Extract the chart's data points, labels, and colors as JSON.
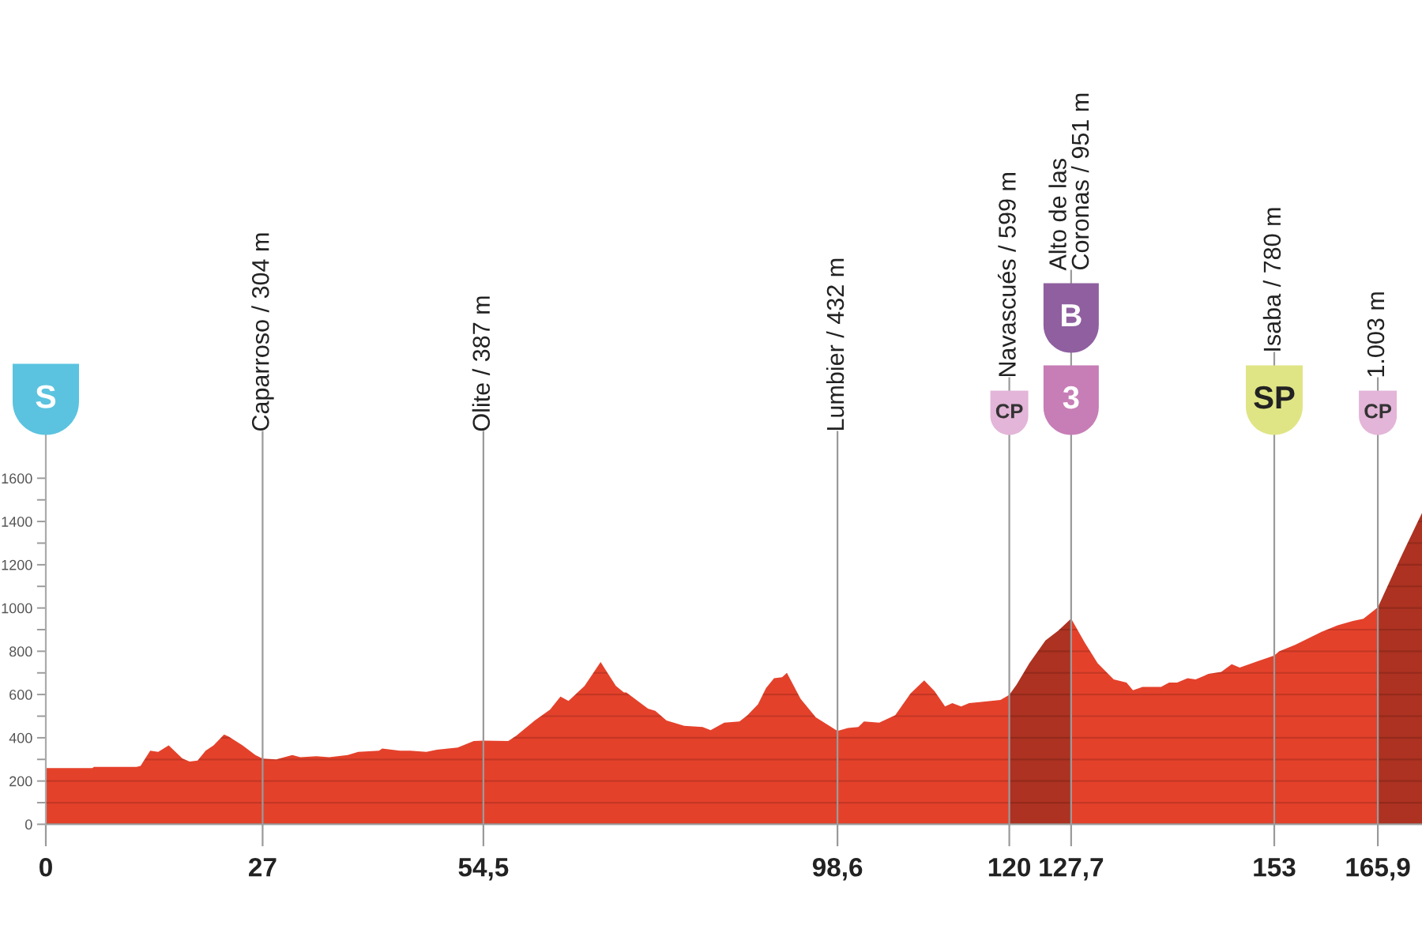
{
  "chart_data": {
    "type": "area",
    "xlim": [
      0,
      171.4
    ],
    "ylim": [
      0,
      1800
    ],
    "xticks": [
      0,
      27,
      {
        "value": 54.5,
        "label": "54,5"
      },
      {
        "value": 98.6,
        "label": "98,6"
      },
      120,
      {
        "value": 127.7,
        "label": "127,7"
      },
      153,
      {
        "value": 165.9,
        "label": "165,9"
      }
    ],
    "yticks": [
      0,
      {
        "value": 100,
        "label": null
      },
      200,
      {
        "value": 300,
        "label": null
      },
      400,
      {
        "value": 500,
        "label": null
      },
      600,
      {
        "value": 700,
        "label": null
      },
      800,
      {
        "value": 900,
        "label": null
      },
      1000,
      {
        "value": 1100,
        "label": null
      },
      1200,
      {
        "value": 1300,
        "label": null
      },
      1400,
      {
        "value": 1500,
        "label": null
      },
      1600
    ],
    "grid": "y",
    "series": [
      {
        "color": "#e4412b",
        "x": [
          0,
          5.8,
          6.0,
          11.3,
          11.8,
          13.0,
          14.0,
          15.3,
          17.0,
          17.9,
          18.9,
          19.9,
          20.9,
          22.2,
          22.8,
          24.5,
          26.1,
          27,
          28.7,
          30.7,
          31.7,
          33.7,
          35.3,
          37.6,
          38.9,
          41.5,
          41.9,
          44.1,
          45.4,
          47.4,
          48.7,
          51.3,
          53.3,
          54.5,
          57.6,
          58.6,
          60.9,
          62.8,
          64.1,
          65.1,
          67.1,
          69.1,
          71.0,
          72.0,
          72.3,
          75.0,
          75.9,
          77.3,
          79.5,
          81.8,
          82.8,
          84.5,
          86.4,
          87.4,
          88.7,
          89.7,
          90.7,
          91.7,
          92.3,
          94.0,
          95.9,
          98.6,
          99.9,
          101.2,
          101.9,
          103.8,
          105.8,
          107.7,
          109.4,
          110.7,
          112.0,
          112.9,
          114.0,
          115.0,
          116.3,
          118.9,
          120
        ],
        "values": [
          260,
          260,
          265,
          265,
          270,
          340,
          335,
          365,
          305,
          290,
          295,
          340,
          365,
          415,
          405,
          365,
          320,
          304,
          300,
          320,
          310,
          315,
          310,
          320,
          335,
          340,
          350,
          340,
          340,
          335,
          345,
          355,
          385,
          387,
          385,
          410,
          480,
          530,
          590,
          570,
          640,
          750,
          640,
          610,
          610,
          535,
          525,
          480,
          455,
          450,
          435,
          470,
          475,
          505,
          555,
          630,
          675,
          680,
          700,
          580,
          495,
          432,
          445,
          450,
          475,
          470,
          505,
          605,
          665,
          615,
          545,
          560,
          545,
          560,
          565,
          575,
          599
        ]
      },
      {
        "color": "#ad3221",
        "x": [
          120,
          120.9,
          122.5,
          124.5,
          126.1,
          127.7
        ],
        "values": [
          599,
          645,
          745,
          850,
          895,
          951
        ]
      },
      {
        "color": "#e4412b",
        "x": [
          127.7,
          129.4,
          131.0,
          133.0,
          134.6,
          135.4,
          136.6,
          138.9,
          139.9,
          140.9,
          142.2,
          143.2,
          144.8,
          146.4,
          147.7,
          148.7,
          151.0,
          153,
          153.6,
          155.6,
          158.9,
          160.9,
          162.8,
          164.1,
          165.9
        ],
        "values": [
          951,
          840,
          745,
          670,
          655,
          620,
          635,
          635,
          655,
          655,
          675,
          670,
          695,
          705,
          740,
          725,
          755,
          780,
          800,
          830,
          890,
          920,
          940,
          950,
          1003
        ]
      },
      {
        "color": "#ad3221",
        "x": [
          165.9,
          168.7,
          171.4
        ],
        "values": [
          1003,
          1230,
          1440
        ]
      }
    ],
    "ref_lines": [
      {
        "axis": "x",
        "value": 27,
        "label": "Caparroso / 304 m",
        "color": "#9a9a9a"
      },
      {
        "axis": "x",
        "value": 54.5,
        "label": "Olite / 387 m",
        "color": "#9a9a9a"
      },
      {
        "axis": "x",
        "value": 98.6,
        "label": "Lumbier / 432 m",
        "color": "#9a9a9a"
      },
      {
        "axis": "x",
        "value": 120,
        "label": "Navascués / 599 m",
        "color": "#9a9a9a"
      },
      {
        "axis": "x",
        "value": 127.7,
        "label": "Alto de las\nCoronas / 951 m",
        "color": "#9a9a9a"
      },
      {
        "axis": "x",
        "value": 153,
        "label": "Isaba / 780 m",
        "color": "#9a9a9a"
      },
      {
        "axis": "x",
        "value": 165.9,
        "label": "1.003 m",
        "color": "#9a9a9a"
      }
    ],
    "annotations": [
      "S",
      {
        "text": "CP",
        "x": 120,
        "y": 1800
      },
      {
        "text": "3",
        "x": 127.7,
        "y": 1800
      },
      "B",
      {
        "text": "SP",
        "x": 153,
        "y": 1800
      },
      {
        "text": "CP",
        "x": 165.9,
        "y": 1800
      }
    ]
  }
}
